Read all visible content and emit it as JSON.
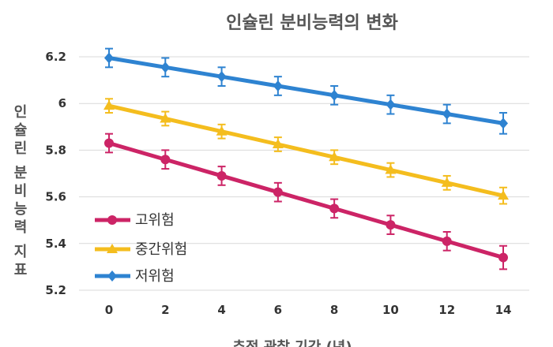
{
  "chart_data": {
    "type": "line",
    "title": "인슐린 분비능력의 변화",
    "xlabel": "추적 관찰 기간 (년)",
    "ylabel": "인슐린 분비능력 지표",
    "x": [
      0,
      2,
      4,
      6,
      8,
      10,
      12,
      14
    ],
    "x_ticks": [
      "0",
      "2",
      "4",
      "6",
      "8",
      "10",
      "12",
      "14"
    ],
    "ylim": [
      5.2,
      6.2
    ],
    "y_ticks": [
      "5.2",
      "5.4",
      "5.6",
      "5.8",
      "6",
      "6.2"
    ],
    "grid": true,
    "legend_position": "bottom-left",
    "series": [
      {
        "name": "고위험",
        "color": "#cc2466",
        "marker": "circle",
        "values": [
          5.83,
          5.76,
          5.69,
          5.62,
          5.55,
          5.48,
          5.41,
          5.34
        ],
        "error": [
          0.04,
          0.04,
          0.04,
          0.04,
          0.04,
          0.04,
          0.04,
          0.05
        ]
      },
      {
        "name": "중간위험",
        "color": "#f4bd1e",
        "marker": "triangle",
        "values": [
          5.99,
          5.935,
          5.88,
          5.825,
          5.77,
          5.715,
          5.66,
          5.605
        ],
        "error": [
          0.03,
          0.03,
          0.03,
          0.03,
          0.03,
          0.03,
          0.03,
          0.035
        ]
      },
      {
        "name": "저위험",
        "color": "#2e83d1",
        "marker": "diamond",
        "values": [
          6.195,
          6.155,
          6.115,
          6.075,
          6.035,
          5.995,
          5.955,
          5.915
        ],
        "error": [
          0.04,
          0.04,
          0.04,
          0.04,
          0.04,
          0.04,
          0.04,
          0.045
        ]
      }
    ]
  }
}
